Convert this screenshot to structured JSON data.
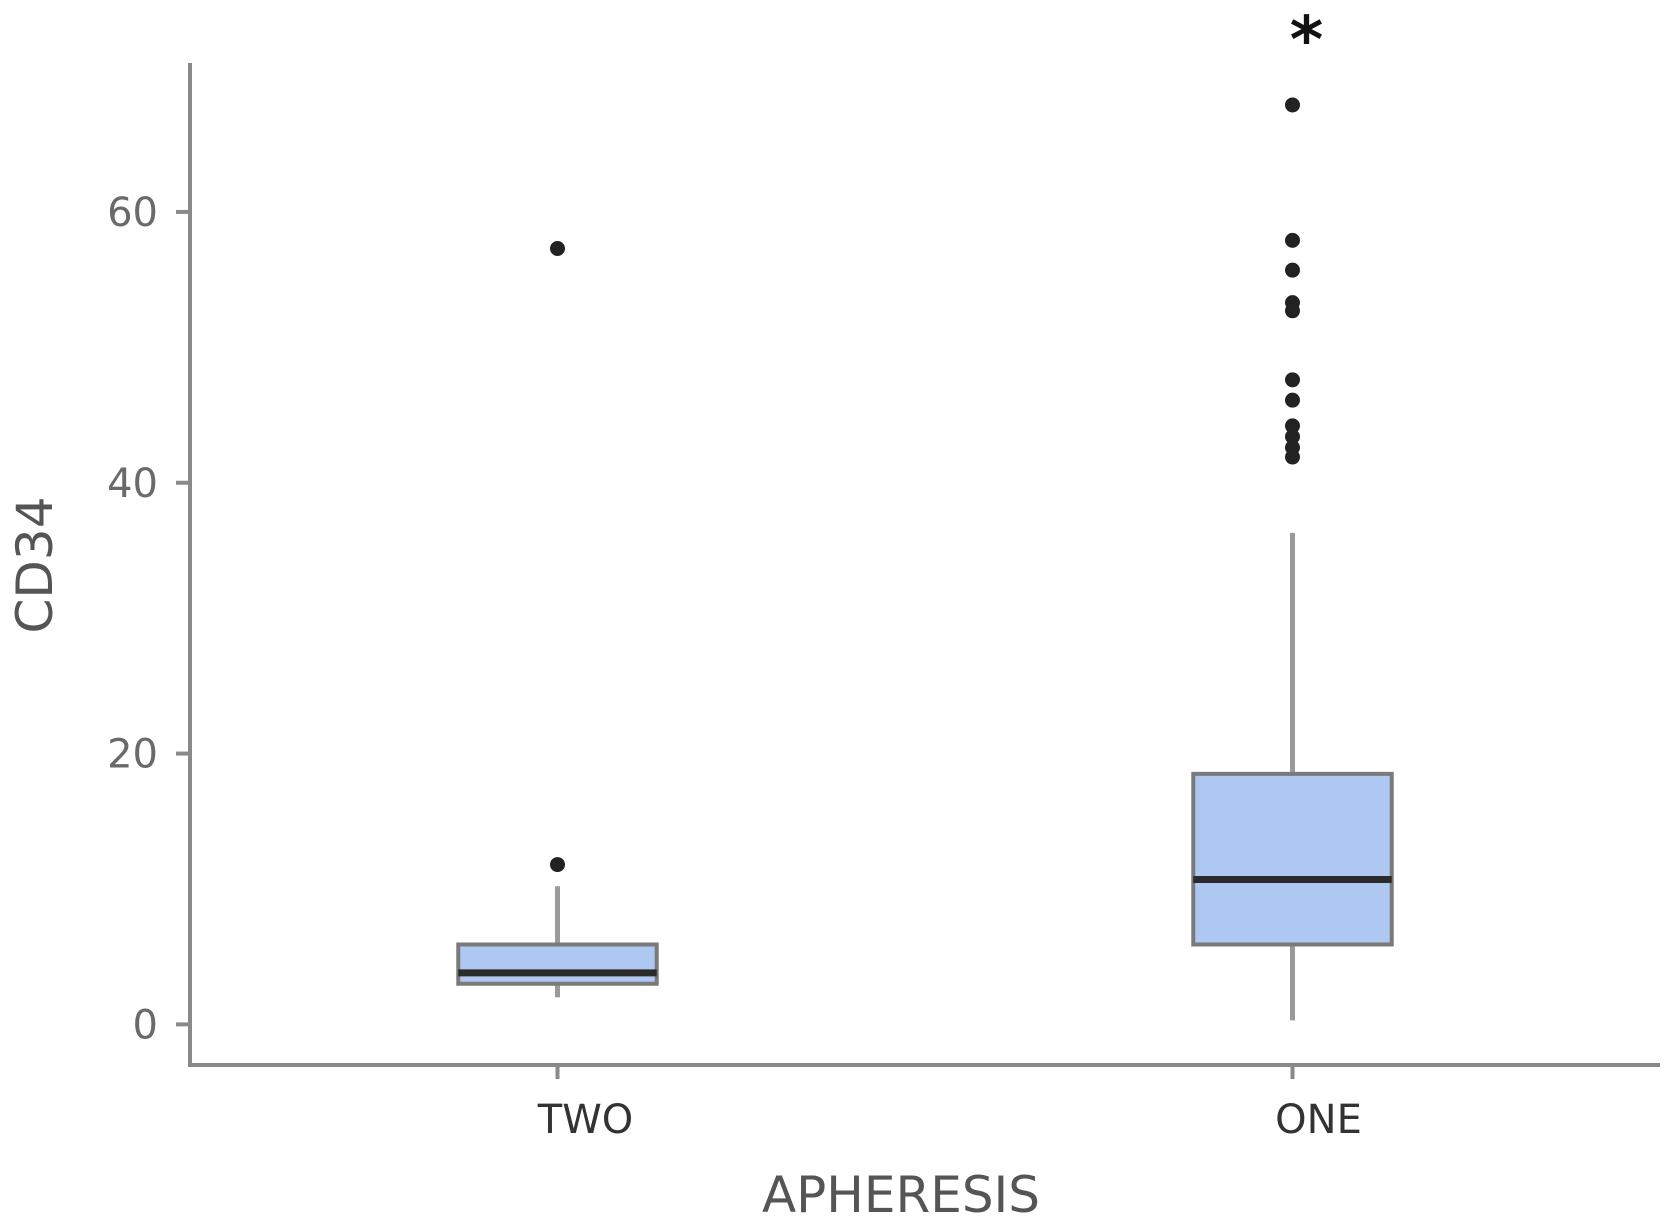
{
  "chart_data": {
    "type": "box",
    "xlabel": "APHERESIS",
    "ylabel": "CD34",
    "yticks": [
      0,
      20,
      40,
      60
    ],
    "ylim": [
      -3,
      71
    ],
    "grid": false,
    "legend": "none",
    "box_fill_color": "#aec8f2",
    "categories": [
      "TWO",
      "ONE"
    ],
    "boxes": [
      {
        "category": "TWO",
        "whisker_low": 2,
        "q1": 3,
        "median": 3.8,
        "q3": 5.9,
        "whisker_high": 10.2,
        "outliers": [
          11.8,
          57.3
        ]
      },
      {
        "category": "ONE",
        "whisker_low": 0.3,
        "q1": 5.9,
        "median": 10.7,
        "q3": 18.5,
        "whisker_high": 36.3,
        "outliers": [
          41.9,
          42.6,
          43.4,
          44.2,
          46.1,
          47.6,
          52.7,
          53.3,
          55.7,
          57.9,
          67.9
        ],
        "annotation": "*"
      }
    ]
  }
}
